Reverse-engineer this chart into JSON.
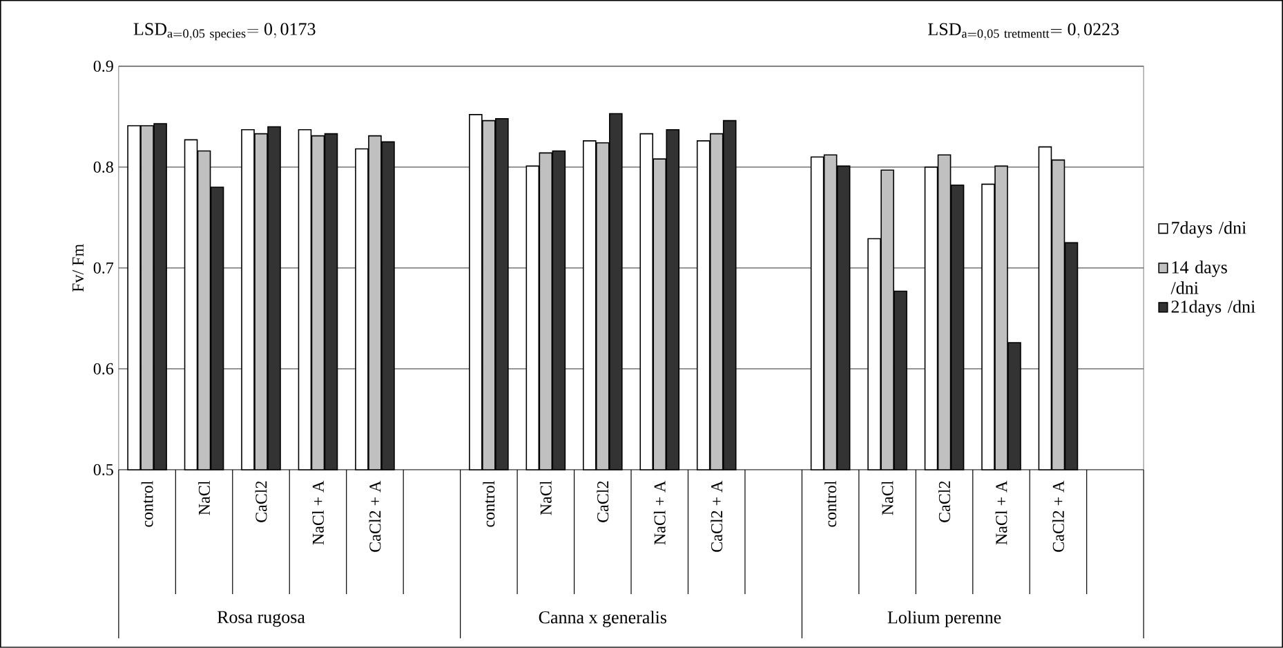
{
  "chart_data": {
    "type": "bar",
    "ylabel": "Fv/ Fm",
    "categories": [
      "control",
      "NaCl",
      "CaCl2",
      "NaCl + A",
      "CaCl2 + A",
      null,
      "control",
      "NaCl",
      "CaCl2",
      "NaCl + A",
      "CaCl2 + A",
      null,
      "control",
      "NaCl",
      "CaCl2",
      "NaCl + A",
      "CaCl2 + A",
      null
    ],
    "series": [
      {
        "name": "7days /dni",
        "color": "#ffffff",
        "values": [
          0.841,
          0.827,
          0.837,
          0.837,
          0.818,
          null,
          0.852,
          0.801,
          0.826,
          0.833,
          0.826,
          null,
          0.81,
          0.729,
          0.8,
          0.783,
          0.82,
          null
        ]
      },
      {
        "name": "14 days /dni",
        "color": "#c0c0c0",
        "values": [
          0.841,
          0.816,
          0.833,
          0.831,
          0.831,
          null,
          0.846,
          0.814,
          0.824,
          0.808,
          0.833,
          null,
          0.812,
          0.797,
          0.812,
          0.801,
          0.807,
          null
        ]
      },
      {
        "name": "21days /dni",
        "color": "#333333",
        "values": [
          0.843,
          0.78,
          0.84,
          0.833,
          0.825,
          null,
          0.848,
          0.816,
          0.853,
          0.837,
          0.846,
          null,
          0.801,
          0.677,
          0.782,
          0.626,
          0.725,
          null
        ]
      }
    ],
    "ylim": [
      0.5,
      0.9
    ],
    "yticks": [
      0.5,
      0.6,
      0.7,
      0.8,
      0.9
    ],
    "grid": "y",
    "legend": "right",
    "annotations": [
      "\\mathrm{LSD}_{\\mathrm{a=0,05\\ species}}\\mathrm{=0,0173}",
      "\\mathrm{LSD}_{\\mathrm{a=0,05\\ tretmentt}}\\mathrm{=0,0223}",
      "Rosa rugosa",
      "Canna x generalis",
      "Lolium perenne"
    ]
  }
}
